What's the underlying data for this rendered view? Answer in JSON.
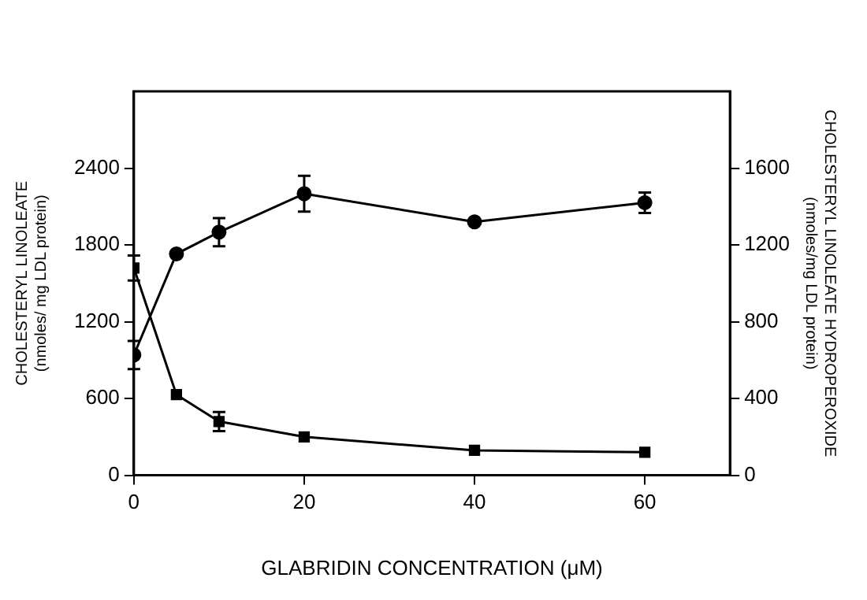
{
  "chart_data": {
    "type": "line",
    "xlabel": "GLABRIDIN CONCENTRATION (μM)",
    "ylabel": "CHOLESTERYL LINOLEATE\n(nmoles/ mg LDL protein)",
    "y2label": "CHOLESTERYL LINOLEATE HYDROPEROXIDE\n(nmoles/mg LDL protein)",
    "x": [
      0,
      5,
      10,
      20,
      40,
      60
    ],
    "series": [
      {
        "color": "#000000",
        "marker": "circle",
        "values": [
          940,
          1730,
          1900,
          2200,
          1980,
          2130
        ],
        "errors": [
          110,
          null,
          110,
          140,
          null,
          80
        ]
      },
      {
        "color": "#000000",
        "marker": "square",
        "axis": "y2",
        "values": [
          1080,
          420,
          280,
          200,
          130,
          120
        ],
        "errors": [
          65,
          null,
          50,
          null,
          null,
          null
        ]
      }
    ],
    "xlim": [
      0,
      70
    ],
    "xticks": [
      0,
      20,
      40,
      60
    ],
    "ylim": [
      0,
      3000
    ],
    "yticks": [
      0,
      600,
      1200,
      1800,
      2400
    ],
    "y2lim": [
      0,
      2000
    ],
    "y2ticks": [
      0,
      400,
      800,
      1200,
      1600
    ],
    "grid": false,
    "legend": false
  }
}
